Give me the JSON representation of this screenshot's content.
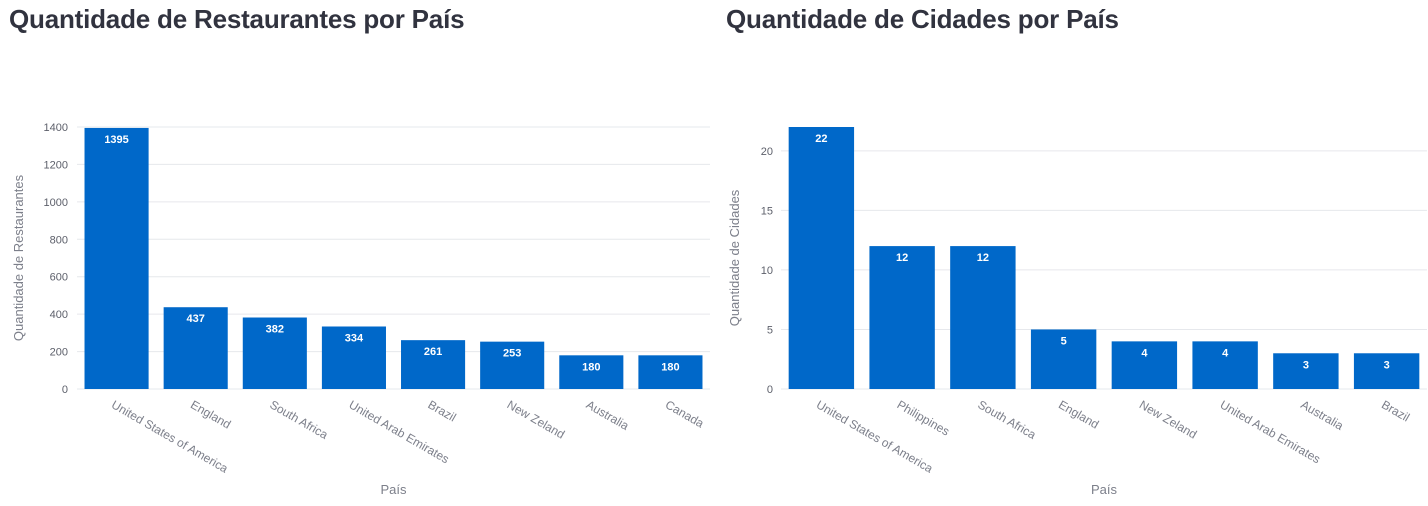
{
  "chart_data": [
    {
      "type": "bar",
      "title": "Quantidade de Restaurantes por País",
      "xlabel": "País",
      "ylabel": "Quantidade de Restaurantes",
      "categories": [
        "United States of America",
        "England",
        "South Africa",
        "United Arab Emirates",
        "Brazil",
        "New Zeland",
        "Australia",
        "Canada"
      ],
      "values": [
        1395,
        437,
        382,
        334,
        261,
        253,
        180,
        180
      ],
      "ylim": [
        0,
        1400
      ],
      "yticks": [
        0,
        200,
        400,
        600,
        800,
        1000,
        1200,
        1400
      ],
      "grid": true,
      "bar_color": "#0068c9",
      "data_labels": true
    },
    {
      "type": "bar",
      "title": "Quantidade de Cidades por País",
      "xlabel": "País",
      "ylabel": "Quantidade de Cidades",
      "categories": [
        "United States of America",
        "Philippines",
        "South Africa",
        "England",
        "New Zeland",
        "United Arab Emirates",
        "Australia",
        "Brazil"
      ],
      "values": [
        22,
        12,
        12,
        5,
        4,
        4,
        3,
        3
      ],
      "ylim": [
        0,
        22
      ],
      "yticks": [
        0,
        5,
        10,
        15,
        20
      ],
      "grid": true,
      "bar_color": "#0068c9",
      "data_labels": true
    }
  ]
}
